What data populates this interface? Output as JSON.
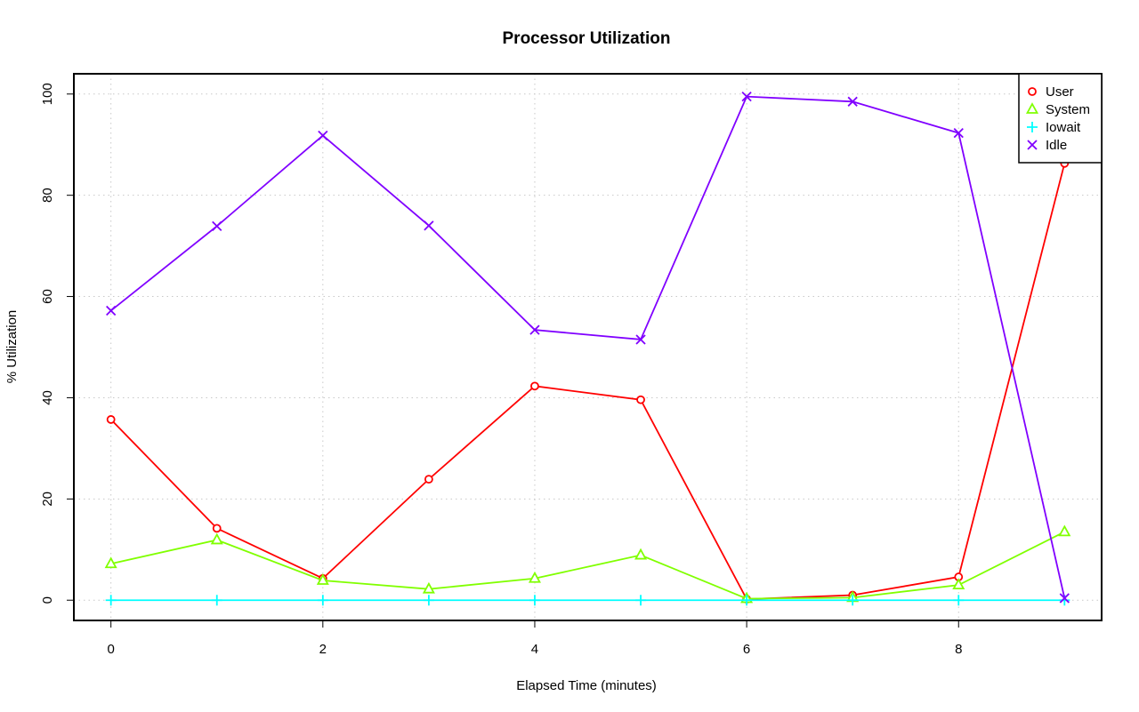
{
  "chart_data": {
    "type": "line",
    "title": "Processor Utilization",
    "xlabel": "Elapsed Time (minutes)",
    "ylabel": "% Utilization",
    "x": [
      0,
      1,
      2,
      3,
      4,
      5,
      6,
      7,
      8,
      9
    ],
    "xlim": [
      -0.35,
      9.35
    ],
    "ylim": [
      -4,
      104
    ],
    "x_ticks": [
      0,
      2,
      4,
      6,
      8
    ],
    "y_ticks": [
      0,
      20,
      40,
      60,
      80,
      100
    ],
    "grid": true,
    "legend_position": "top-right",
    "series": [
      {
        "name": "User",
        "color": "#ff0000",
        "marker": "circle",
        "values": [
          35.7,
          14.2,
          4.3,
          23.9,
          42.3,
          39.6,
          0.2,
          1.0,
          4.6,
          86.3
        ]
      },
      {
        "name": "System",
        "color": "#80ff00",
        "marker": "triangle",
        "values": [
          7.2,
          11.9,
          3.9,
          2.2,
          4.3,
          8.9,
          0.3,
          0.5,
          3.0,
          13.5
        ]
      },
      {
        "name": "Iowait",
        "color": "#00ffff",
        "marker": "plus",
        "values": [
          0,
          0,
          0,
          0,
          0,
          0,
          0,
          0,
          0,
          0
        ]
      },
      {
        "name": "Idle",
        "color": "#8000ff",
        "marker": "cross",
        "values": [
          57.2,
          73.9,
          91.8,
          74.0,
          53.4,
          51.5,
          99.5,
          98.5,
          92.3,
          0.4
        ]
      }
    ]
  }
}
